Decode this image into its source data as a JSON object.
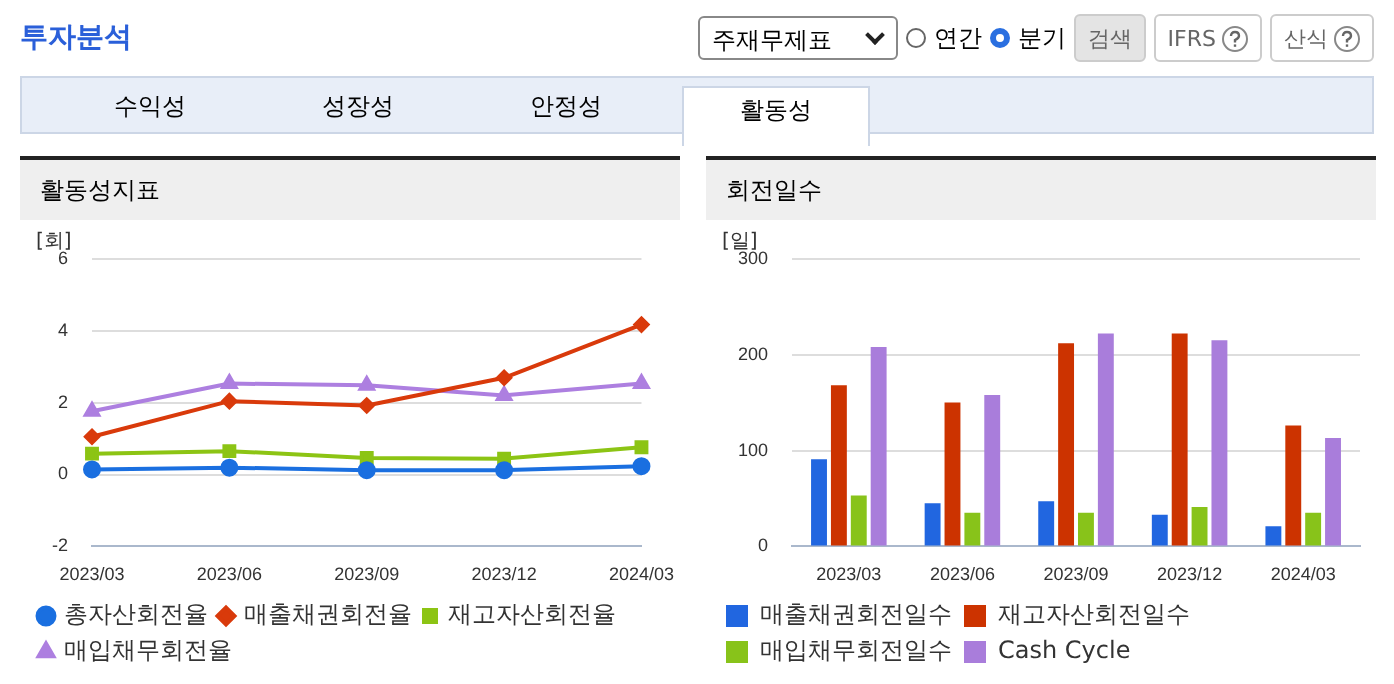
{
  "chart_data": [
    {
      "type": "other",
      "title": "투자분석",
      "annotations": [
        "주재무제표",
        "연간",
        "분기",
        "검색",
        "IFRS",
        "산식",
        "수익성",
        "성장성",
        "안정성",
        "활동성"
      ]
    },
    {
      "type": "line",
      "title": "활동성지표",
      "ylabel": "[회]",
      "categories": [
        "2023/03",
        "2023/06",
        "2023/09",
        "2023/12",
        "2024/03"
      ],
      "ylim": [
        -2,
        6
      ],
      "yticks": [
        -2,
        0,
        2,
        4,
        6
      ],
      "grid": "y",
      "legend": "bottom",
      "series": [
        {
          "name": "총자산회전율",
          "color": "#1a6fe0",
          "marker": "circle",
          "values": [
            0.14,
            0.19,
            0.12,
            0.12,
            0.23
          ]
        },
        {
          "name": "매출채권회전율",
          "color": "#d93a0b",
          "marker": "diamond",
          "values": [
            1.05,
            2.04,
            1.92,
            2.69,
            4.17
          ]
        },
        {
          "name": "재고자산회전율",
          "color": "#8cc414",
          "marker": "square",
          "values": [
            0.58,
            0.65,
            0.46,
            0.44,
            0.76
          ]
        },
        {
          "name": "매입채무회전율",
          "color": "#ad7fe0",
          "marker": "triangle",
          "values": [
            1.76,
            2.53,
            2.48,
            2.2,
            2.53
          ]
        }
      ]
    },
    {
      "type": "bar",
      "title": "회전일수",
      "ylabel": "[일]",
      "categories": [
        "2023/03",
        "2023/06",
        "2023/09",
        "2023/12",
        "2024/03"
      ],
      "ylim": [
        0,
        300
      ],
      "yticks": [
        0,
        100,
        200,
        300
      ],
      "grid": "y",
      "legend": "bottom",
      "series": [
        {
          "name": "매출채권회전일수",
          "color": "#2166e0",
          "values": [
            91,
            45,
            47,
            33,
            21
          ]
        },
        {
          "name": "재고자산회전일수",
          "color": "#cc3300",
          "values": [
            168,
            150,
            212,
            222,
            126
          ]
        },
        {
          "name": "매입채무회전일수",
          "color": "#88c31a",
          "values": [
            53,
            35,
            35,
            41,
            35
          ]
        },
        {
          "name": "Cash Cycle",
          "color": "#a97ddb",
          "values": [
            208,
            158,
            222,
            215,
            113
          ]
        }
      ]
    }
  ]
}
